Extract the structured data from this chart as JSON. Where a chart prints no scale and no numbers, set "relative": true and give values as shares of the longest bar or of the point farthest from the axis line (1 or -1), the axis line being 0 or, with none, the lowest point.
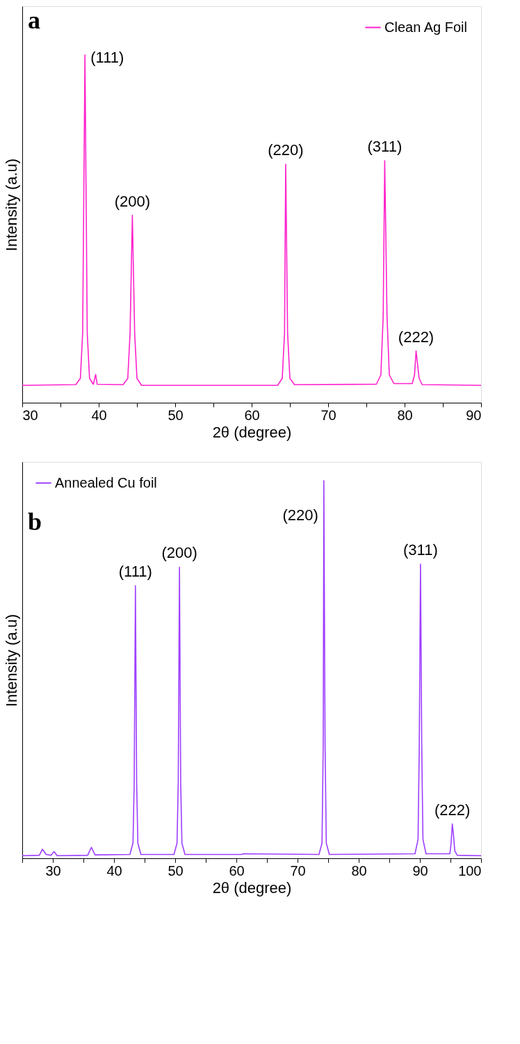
{
  "chart_data": [
    {
      "type": "line",
      "relative": true,
      "xlabel": "2θ (degree)",
      "ylabel": "Intensity (a.u)",
      "xlim": [
        30,
        90
      ],
      "xticks": [
        30,
        {
          "value": 35,
          "label": null
        },
        40,
        {
          "value": 45,
          "label": null
        },
        50,
        {
          "value": 55,
          "label": null
        },
        60,
        {
          "value": 65,
          "label": null
        },
        70,
        {
          "value": 75,
          "label": null
        },
        80,
        {
          "value": 85,
          "label": null
        },
        90
      ],
      "legend": "top right",
      "grid": false,
      "line_style": "solid",
      "series": [
        {
          "name": "Clean Ag Foil",
          "color": "#ff22cc",
          "x": [
            30,
            37.0,
            37.6,
            37.9,
            38.2,
            38.5,
            38.8,
            39.3,
            39.6,
            39.8,
            43.2,
            43.8,
            44.1,
            44.4,
            44.7,
            45.0,
            45.6,
            63.4,
            64.0,
            64.3,
            64.45,
            64.7,
            65.0,
            65.6,
            76.3,
            76.9,
            77.2,
            77.4,
            77.7,
            78.0,
            78.6,
            81.0,
            81.3,
            81.5,
            81.7,
            81.9,
            82.3,
            90
          ],
          "values": [
            0.05,
            0.052,
            0.07,
            0.2,
            1.0,
            0.2,
            0.07,
            0.053,
            0.081,
            0.053,
            0.052,
            0.07,
            0.2,
            0.539,
            0.2,
            0.07,
            0.05,
            0.05,
            0.07,
            0.2,
            0.686,
            0.2,
            0.07,
            0.052,
            0.053,
            0.08,
            0.25,
            0.696,
            0.25,
            0.08,
            0.055,
            0.055,
            0.08,
            0.149,
            0.11,
            0.07,
            0.052,
            0.05
          ]
        }
      ],
      "annotations": [
        "a",
        {
          "text": "(111)",
          "x": 38.2,
          "y": 1.0
        },
        {
          "text": "(200)",
          "x": 44.4,
          "y": 0.539
        },
        {
          "text": "(220)",
          "x": 64.45,
          "y": 0.686
        },
        {
          "text": "(311)",
          "x": 77.4,
          "y": 0.696
        },
        {
          "text": "(222)",
          "x": 81.5,
          "y": 0.149
        }
      ]
    },
    {
      "type": "line",
      "relative": true,
      "xlabel": "2θ (degree)",
      "ylabel": "Intensity (a.u)",
      "xlim": [
        25,
        100
      ],
      "xticks": [
        {
          "value": 25,
          "label": null
        },
        30,
        {
          "value": 35,
          "label": null
        },
        40,
        {
          "value": 45,
          "label": null
        },
        50,
        {
          "value": 55,
          "label": null
        },
        60,
        {
          "value": 65,
          "label": null
        },
        70,
        {
          "value": 75,
          "label": null
        },
        80,
        {
          "value": 85,
          "label": null
        },
        90,
        {
          "value": 95,
          "label": null
        },
        100
      ],
      "legend": "top left",
      "grid": false,
      "line_style": "solid",
      "series": [
        {
          "name": "Annealed Cu foil",
          "color": "#9d3fff",
          "x": [
            25,
            27.8,
            28.3,
            28.9,
            29.7,
            30.2,
            30.7,
            35.7,
            36.3,
            36.9,
            42.6,
            43.1,
            43.3,
            43.5,
            43.7,
            43.9,
            44.4,
            49.8,
            50.3,
            50.5,
            50.7,
            50.9,
            51.1,
            51.6,
            60.8,
            61.2,
            73.5,
            74.0,
            74.2,
            74.3,
            74.5,
            74.7,
            75.2,
            89.2,
            89.7,
            89.9,
            90.1,
            90.3,
            90.5,
            91.0,
            94.9,
            95.1,
            95.3,
            95.5,
            95.7,
            96.1,
            100
          ],
          "values": [
            0.007,
            0.008,
            0.024,
            0.01,
            0.008,
            0.018,
            0.007,
            0.008,
            0.029,
            0.009,
            0.01,
            0.04,
            0.2,
            0.722,
            0.2,
            0.04,
            0.01,
            0.01,
            0.04,
            0.2,
            0.771,
            0.2,
            0.04,
            0.01,
            0.01,
            0.012,
            0.01,
            0.04,
            0.3,
            1.0,
            0.3,
            0.04,
            0.01,
            0.012,
            0.05,
            0.3,
            0.779,
            0.3,
            0.05,
            0.012,
            0.012,
            0.04,
            0.091,
            0.06,
            0.02,
            0.008,
            0.007
          ]
        }
      ],
      "annotations": [
        "b",
        {
          "text": "(111)",
          "x": 43.5,
          "y": 0.722
        },
        {
          "text": "(200)",
          "x": 50.7,
          "y": 0.771
        },
        {
          "text": "(220)",
          "x": 74.3,
          "y": 1.0
        },
        {
          "text": "(311)",
          "x": 90.1,
          "y": 0.779
        },
        {
          "text": "(222)",
          "x": 95.3,
          "y": 0.091
        }
      ]
    }
  ]
}
